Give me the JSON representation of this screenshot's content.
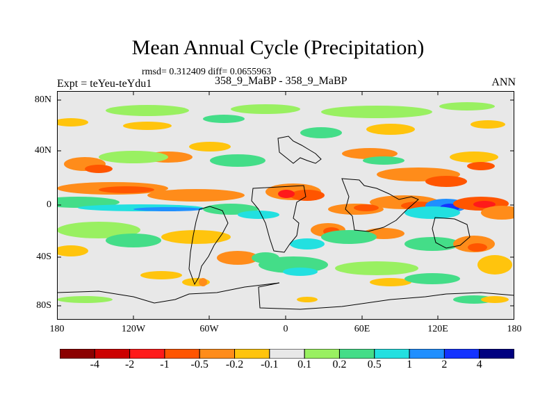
{
  "title": "Mean Annual Cycle (Precipitation)",
  "stats": "rmsd= 0.312409 diff= 0.0655963",
  "experiment": "Expt = teYeu-teYdu1",
  "case": "358_9_MaBP - 358_9_MaBP",
  "season": "ANN",
  "lat_ticks": [
    "80N",
    "40N",
    "0",
    "40S",
    "80S"
  ],
  "lon_ticks": [
    "180",
    "120W",
    "60W",
    "0",
    "60E",
    "120E",
    "180"
  ],
  "colorbar": {
    "labels": [
      "-4",
      "-2",
      "-1",
      "-0.5",
      "-0.2",
      "-0.1",
      "0.1",
      "0.2",
      "0.5",
      "1",
      "2",
      "4"
    ],
    "colors": [
      "#8b0000",
      "#cc0000",
      "#ff1a1a",
      "#ff5500",
      "#ff8c1a",
      "#ffc40d",
      "#e8e8e8",
      "#99f061",
      "#44dd88",
      "#22e0e0",
      "#1f8fff",
      "#1433ff",
      "#000080"
    ]
  },
  "map": {
    "background_color": "#e8e8e8",
    "land_outline_color": "#000000"
  }
}
